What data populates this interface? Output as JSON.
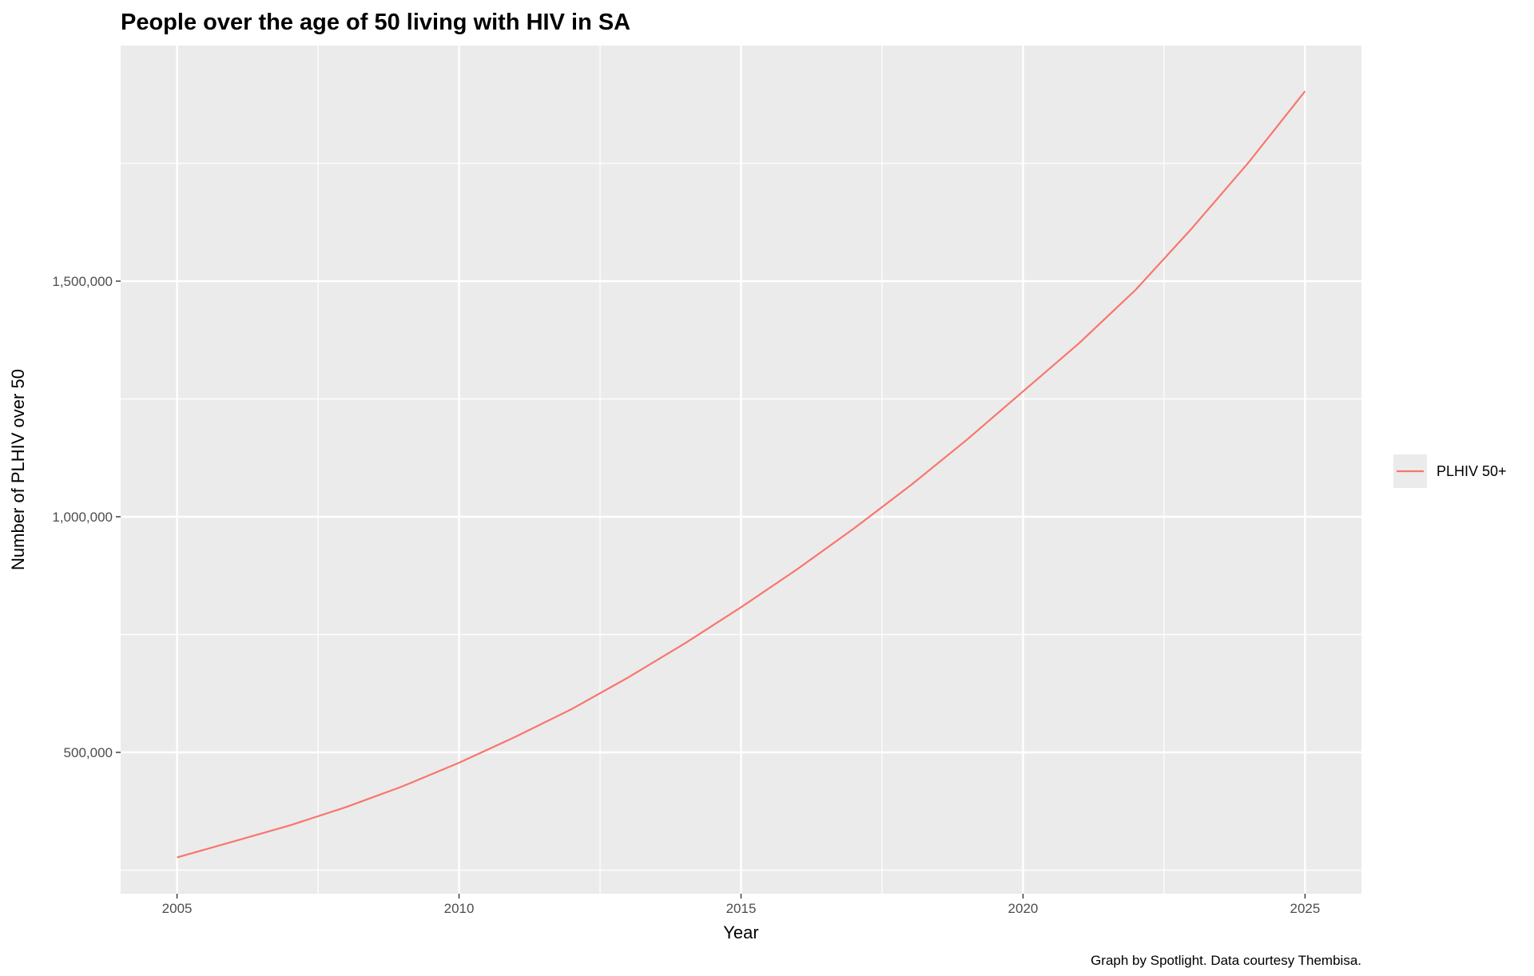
{
  "chart_data": {
    "type": "line",
    "title": "People over the age of 50 living with HIV in SA",
    "xlabel": "Year",
    "ylabel": "Number of PLHIV over 50",
    "caption": "Graph by Spotlight. Data courtesy Thembisa.",
    "xlim": [
      2004,
      2026
    ],
    "ylim": [
      200000,
      2000000
    ],
    "x_ticks": [
      {
        "value": 2005,
        "label": "2005"
      },
      {
        "value": 2010,
        "label": "2010"
      },
      {
        "value": 2015,
        "label": "2015"
      },
      {
        "value": 2020,
        "label": "2020"
      },
      {
        "value": 2025,
        "label": "2025"
      }
    ],
    "y_ticks": [
      {
        "value": 500000,
        "label": "500,000"
      },
      {
        "value": 1000000,
        "label": "1,000,000"
      },
      {
        "value": 1500000,
        "label": "1,500,000"
      }
    ],
    "x_minor": [
      2007.5,
      2012.5,
      2017.5,
      2022.5
    ],
    "y_minor": [
      250000,
      750000,
      1250000,
      1750000
    ],
    "grid": true,
    "legend_position": "right",
    "series": [
      {
        "name": "PLHIV 50+",
        "color": "#F8766D",
        "x": [
          2005,
          2006,
          2007,
          2008,
          2009,
          2010,
          2011,
          2012,
          2013,
          2014,
          2015,
          2016,
          2017,
          2018,
          2019,
          2020,
          2021,
          2022,
          2023,
          2024,
          2025
        ],
        "values": [
          277000,
          311000,
          345000,
          384000,
          428000,
          478000,
          533000,
          592000,
          659000,
          731000,
          808000,
          889000,
          975000,
          1066000,
          1163000,
          1266000,
          1369000,
          1482000,
          1613000,
          1752000,
          1903000
        ]
      }
    ]
  }
}
